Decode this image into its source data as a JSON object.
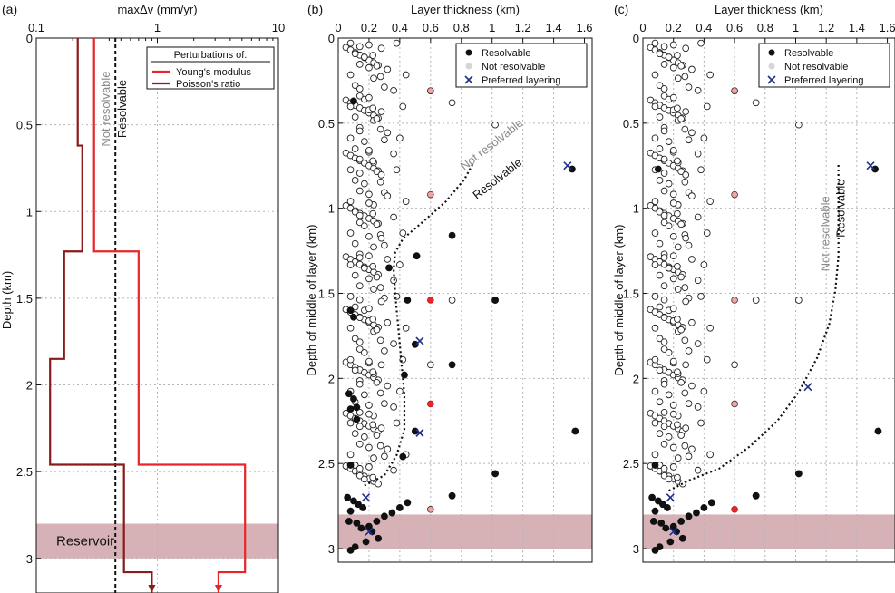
{
  "chart_data": [
    {
      "panel": "(a)",
      "type": "line",
      "title": "maxΔv (mm/yr)",
      "xlabel": "maxΔv (mm/yr)",
      "ylabel": "Depth (km)",
      "xscale": "log",
      "xlim": [
        0.1,
        10
      ],
      "ylim": [
        0,
        3.2
      ],
      "xticks": [
        0.1,
        1,
        10
      ],
      "xtick_labels": [
        "0.1",
        "1",
        "10"
      ],
      "yticks": [
        0,
        0.5,
        1,
        1.5,
        2,
        2.5,
        3
      ],
      "ytick_labels": [
        "0",
        "0.5",
        "1",
        "1.5",
        "2",
        "2.5",
        "3"
      ],
      "legend_title": "Perturbations of:",
      "legend_position": "top-right",
      "series": [
        {
          "name": "Young's modulus",
          "color": "#e8262a",
          "steps": [
            [
              0.0,
              0.62,
              0.3
            ],
            [
              0.62,
              1.23,
              0.3
            ],
            [
              1.23,
              1.85,
              0.7
            ],
            [
              1.85,
              2.46,
              0.7
            ],
            [
              2.46,
              3.08,
              5.3
            ],
            [
              3.08,
              3.2,
              3.2
            ]
          ]
        },
        {
          "name": "Poisson's ratio",
          "color": "#8b1a1a",
          "steps": [
            [
              0.0,
              0.62,
              0.22
            ],
            [
              0.62,
              1.23,
              0.24
            ],
            [
              1.23,
              1.85,
              0.17
            ],
            [
              1.85,
              2.46,
              0.13
            ],
            [
              2.46,
              3.08,
              0.53
            ],
            [
              3.08,
              3.2,
              0.9
            ]
          ]
        }
      ],
      "threshold": {
        "value": 0.45,
        "label_left": "Not resolvable",
        "label_right": "Resolvable"
      },
      "reservoir": {
        "label": "Reservoir",
        "top": 2.8,
        "bottom": 3.0
      }
    },
    {
      "panel": "(b)",
      "type": "scatter",
      "xlabel": "Layer thickness (km)",
      "ylabel": "Depth of middle of layer (km)",
      "xlim": [
        0,
        1.65
      ],
      "ylim": [
        0,
        3.08
      ],
      "xticks": [
        0,
        0.2,
        0.4,
        0.6,
        0.8,
        1,
        1.2,
        1.4,
        1.6
      ],
      "xtick_labels": [
        "0",
        "0.2",
        "0.4",
        "0.6",
        "0.8",
        "1",
        "1.2",
        "1.4",
        "1.6"
      ],
      "yticks": [
        0,
        0.5,
        1,
        1.5,
        2,
        2.5,
        3
      ],
      "ytick_labels": [
        "0",
        "0.5",
        "1",
        "1.5",
        "2",
        "2.5",
        "3"
      ],
      "legend": [
        "Resolvable",
        "Not resolvable",
        "Preferred layering"
      ],
      "legend_position": "top-right",
      "boundary_label_upper": "Not resolvable",
      "boundary_label_lower": "Resolvable",
      "boundary": [
        [
          0.17,
          2.63
        ],
        [
          0.3,
          2.57
        ],
        [
          0.38,
          2.45
        ],
        [
          0.43,
          2.3
        ],
        [
          0.43,
          2.1
        ],
        [
          0.41,
          1.9
        ],
        [
          0.39,
          1.7
        ],
        [
          0.37,
          1.5
        ],
        [
          0.36,
          1.36
        ],
        [
          0.37,
          1.26
        ],
        [
          0.42,
          1.18
        ],
        [
          0.55,
          1.08
        ],
        [
          0.7,
          0.96
        ],
        [
          0.82,
          0.83
        ],
        [
          0.88,
          0.73
        ]
      ],
      "boundary_key": "curve_b",
      "resolvable_points": [
        [
          0.1,
          0.37
        ],
        [
          0.08,
          1.6
        ],
        [
          0.1,
          1.64
        ],
        [
          0.07,
          2.09
        ],
        [
          0.1,
          2.12
        ],
        [
          0.12,
          2.17
        ],
        [
          0.08,
          2.18
        ],
        [
          0.12,
          2.24
        ],
        [
          0.08,
          2.51
        ],
        [
          0.06,
          2.7
        ],
        [
          0.1,
          2.72
        ],
        [
          0.13,
          2.74
        ],
        [
          0.16,
          2.76
        ],
        [
          0.08,
          2.78
        ],
        [
          0.07,
          2.84
        ],
        [
          0.12,
          2.85
        ],
        [
          0.15,
          2.88
        ],
        [
          0.2,
          2.87
        ],
        [
          0.25,
          2.84
        ],
        [
          0.3,
          2.81
        ],
        [
          0.35,
          2.79
        ],
        [
          0.4,
          2.76
        ],
        [
          0.45,
          2.73
        ],
        [
          0.22,
          2.9
        ],
        [
          0.26,
          2.94
        ],
        [
          0.18,
          2.96
        ],
        [
          0.11,
          2.99
        ],
        [
          0.08,
          3.01
        ],
        [
          0.33,
          1.35
        ],
        [
          0.51,
          1.28
        ],
        [
          0.45,
          1.54
        ],
        [
          0.5,
          1.8
        ],
        [
          0.43,
          1.98
        ],
        [
          0.5,
          2.31
        ],
        [
          0.74,
          1.16
        ],
        [
          1.02,
          1.54
        ],
        [
          0.74,
          1.92
        ],
        [
          1.02,
          2.56
        ],
        [
          0.74,
          2.69
        ],
        [
          1.52,
          0.77
        ],
        [
          1.54,
          2.31
        ],
        [
          0.42,
          2.46
        ]
      ],
      "red_points": [
        [
          0.6,
          0.31,
          "light"
        ],
        [
          0.6,
          0.92,
          "light"
        ],
        [
          0.6,
          1.54,
          "solid"
        ],
        [
          0.6,
          2.15,
          "solid"
        ],
        [
          0.6,
          2.77,
          "light"
        ]
      ],
      "preferred_layering": [
        [
          1.49,
          0.75
        ],
        [
          0.53,
          1.78
        ],
        [
          0.53,
          2.32
        ],
        [
          0.18,
          2.7
        ],
        [
          0.2,
          2.9
        ]
      ]
    },
    {
      "panel": "(c)",
      "type": "scatter",
      "xlabel": "Layer thickness (km)",
      "ylabel": "Depth of middle of layer (km)",
      "xlim": [
        0,
        1.65
      ],
      "ylim": [
        0,
        3.08
      ],
      "xticks": [
        0,
        0.2,
        0.4,
        0.6,
        0.8,
        1,
        1.2,
        1.4,
        1.6
      ],
      "xtick_labels": [
        "0",
        "0.2",
        "0.4",
        "0.6",
        "0.8",
        "1",
        "1.2",
        "1.4",
        "1.6"
      ],
      "yticks": [
        0,
        0.5,
        1,
        1.5,
        2,
        2.5,
        3
      ],
      "ytick_labels": [
        "0",
        "0.5",
        "1",
        "1.5",
        "2",
        "2.5",
        "3"
      ],
      "legend": [
        "Resolvable",
        "Not resolvable",
        "Preferred layering"
      ],
      "legend_position": "top-right",
      "boundary_label_upper": "Not resolvable",
      "boundary_label_lower": "Resolvable",
      "boundary": [
        [
          0.17,
          2.66
        ],
        [
          0.3,
          2.6
        ],
        [
          0.5,
          2.53
        ],
        [
          0.7,
          2.4
        ],
        [
          0.88,
          2.25
        ],
        [
          1.02,
          2.08
        ],
        [
          1.14,
          1.88
        ],
        [
          1.22,
          1.68
        ],
        [
          1.26,
          1.48
        ],
        [
          1.28,
          1.28
        ],
        [
          1.28,
          1.08
        ],
        [
          1.28,
          0.9
        ],
        [
          1.28,
          0.73
        ]
      ],
      "boundary_key": "curve_c",
      "resolvable_points": [
        [
          0.1,
          0.77
        ],
        [
          0.08,
          2.51
        ],
        [
          0.06,
          2.7
        ],
        [
          0.1,
          2.72
        ],
        [
          0.13,
          2.74
        ],
        [
          0.16,
          2.76
        ],
        [
          0.08,
          2.78
        ],
        [
          0.07,
          2.84
        ],
        [
          0.12,
          2.85
        ],
        [
          0.15,
          2.88
        ],
        [
          0.2,
          2.87
        ],
        [
          0.25,
          2.84
        ],
        [
          0.3,
          2.81
        ],
        [
          0.35,
          2.79
        ],
        [
          0.4,
          2.76
        ],
        [
          0.45,
          2.73
        ],
        [
          0.22,
          2.9
        ],
        [
          0.26,
          2.94
        ],
        [
          0.18,
          2.96
        ],
        [
          0.11,
          2.99
        ],
        [
          0.08,
          3.01
        ],
        [
          1.02,
          2.56
        ],
        [
          0.74,
          2.69
        ],
        [
          1.52,
          0.77
        ],
        [
          1.54,
          2.31
        ]
      ],
      "red_points": [
        [
          0.6,
          0.31,
          "light"
        ],
        [
          0.6,
          0.92,
          "light"
        ],
        [
          0.6,
          1.54,
          "light"
        ],
        [
          0.6,
          2.15,
          "light"
        ],
        [
          0.6,
          2.77,
          "solid"
        ]
      ],
      "preferred_layering": [
        [
          1.49,
          0.75
        ],
        [
          1.08,
          2.05
        ],
        [
          0.18,
          2.7
        ],
        [
          0.2,
          2.9
        ]
      ]
    }
  ],
  "colors": {
    "young": "#e8262a",
    "poisson": "#8b1a1a",
    "reservoir": "#cfa4a9",
    "cross": "#1f2f8a",
    "grid": "#b5b5b5",
    "open_fill": "#ffffff",
    "open_stroke": "#222222",
    "light_red": "#f3a3a3"
  }
}
